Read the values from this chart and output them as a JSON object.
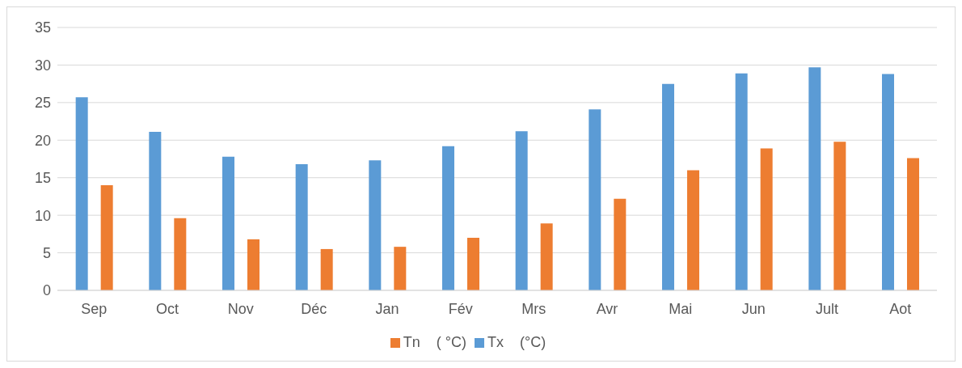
{
  "chart_data": {
    "type": "bar",
    "categories": [
      "Sep",
      "Oct",
      "Nov",
      "Déc",
      "Jan",
      "Fév",
      "Mrs",
      "Avr",
      "Mai",
      "Jun",
      "Jult",
      "Aot"
    ],
    "series": [
      {
        "name": "Tx    (°C)",
        "color": "#5b9bd5",
        "values": [
          25.7,
          21.1,
          17.8,
          16.8,
          17.3,
          19.2,
          21.2,
          24.1,
          27.5,
          28.9,
          29.7,
          28.8
        ]
      },
      {
        "name": "Tn    ( °C)",
        "color": "#ed7d31",
        "values": [
          14.0,
          9.6,
          6.8,
          5.5,
          5.8,
          7.0,
          8.9,
          12.2,
          16.0,
          18.9,
          19.8,
          17.6
        ]
      }
    ],
    "ylim": [
      0,
      35
    ],
    "yticks": [
      0,
      5,
      10,
      15,
      20,
      25,
      30,
      35
    ],
    "grid": "y",
    "legend": "bottom"
  }
}
